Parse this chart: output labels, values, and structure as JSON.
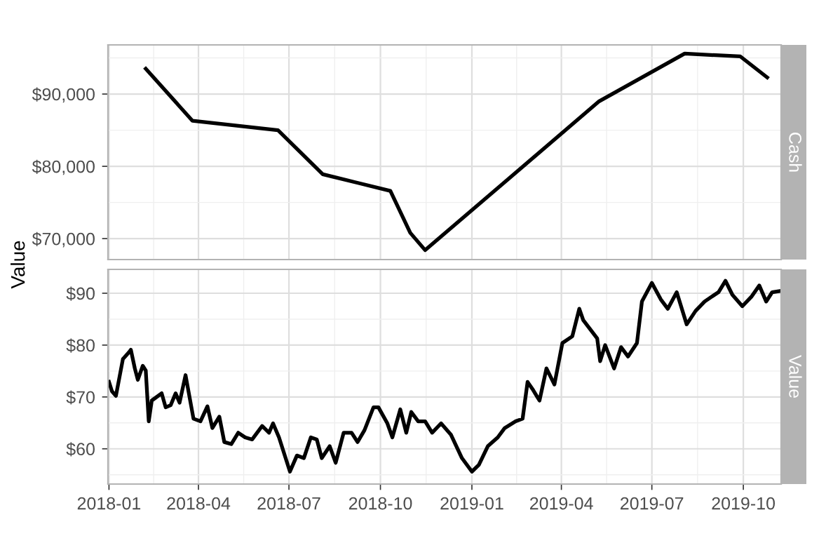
{
  "chart_data": [
    {
      "type": "line",
      "subtitle": "Cash",
      "ylabel": "Value",
      "tick_labels": "y",
      "grid": true,
      "legend": false,
      "marker": "none",
      "line_style": "solid",
      "xlim": [
        "2017-12-31",
        "2019-11-08"
      ],
      "xticks": [
        "2018-01",
        "2018-04",
        "2018-07",
        "2018-10",
        "2019-01",
        "2019-04",
        "2019-07",
        "2019-10"
      ],
      "ylim": [
        67100,
        96800
      ],
      "yticks": [
        {
          "value": 70000,
          "label": "$70,000"
        },
        {
          "value": 80000,
          "label": "$80,000"
        },
        {
          "value": 90000,
          "label": "$90,000"
        }
      ],
      "series": [
        {
          "color": "#000000",
          "x": [
            "2018-02-07",
            "2018-03-26",
            "2018-06-20",
            "2018-08-04",
            "2018-10-11",
            "2018-10-31",
            "2018-11-15",
            "2019-05-09",
            "2019-08-03",
            "2019-09-28",
            "2019-10-25"
          ],
          "values": [
            93500,
            86300,
            85000,
            78900,
            76600,
            70800,
            68400,
            89000,
            95600,
            95200,
            92300
          ]
        }
      ]
    },
    {
      "type": "line",
      "subtitle": "Value",
      "grid": true,
      "legend": false,
      "marker": "none",
      "line_style": "solid",
      "xlim": [
        "2017-12-31",
        "2019-11-08"
      ],
      "xticks": [
        "2018-01",
        "2018-04",
        "2018-07",
        "2018-10",
        "2019-01",
        "2019-04",
        "2019-07",
        "2019-10"
      ],
      "ylim": [
        53.2,
        94.6
      ],
      "yticks": [
        {
          "value": 60,
          "label": "$60"
        },
        {
          "value": 70,
          "label": "$70"
        },
        {
          "value": 80,
          "label": "$80"
        },
        {
          "value": 90,
          "label": "$90"
        }
      ],
      "series": [
        {
          "color": "#000000",
          "x": [
            "2018-01-01",
            "2018-01-04",
            "2018-01-08",
            "2018-01-15",
            "2018-01-21",
            "2018-01-23",
            "2018-01-27",
            "2018-01-30",
            "2018-02-04",
            "2018-02-07",
            "2018-02-10",
            "2018-02-13",
            "2018-02-23",
            "2018-02-27",
            "2018-03-04",
            "2018-03-09",
            "2018-03-13",
            "2018-03-19",
            "2018-03-27",
            "2018-04-03",
            "2018-04-10",
            "2018-04-15",
            "2018-04-22",
            "2018-04-27",
            "2018-05-04",
            "2018-05-11",
            "2018-05-18",
            "2018-05-25",
            "2018-06-04",
            "2018-06-11",
            "2018-06-15",
            "2018-06-21",
            "2018-07-02",
            "2018-07-09",
            "2018-07-16",
            "2018-07-23",
            "2018-07-29",
            "2018-08-03",
            "2018-08-11",
            "2018-08-17",
            "2018-08-25",
            "2018-09-02",
            "2018-09-08",
            "2018-09-15",
            "2018-09-24",
            "2018-09-29",
            "2018-10-08",
            "2018-10-13",
            "2018-10-21",
            "2018-10-27",
            "2018-11-01",
            "2018-11-08",
            "2018-11-15",
            "2018-11-22",
            "2018-12-01",
            "2018-12-11",
            "2018-12-22",
            "2019-01-01",
            "2019-01-08",
            "2019-01-17",
            "2019-01-27",
            "2019-02-03",
            "2019-02-14",
            "2019-02-21",
            "2019-02-26",
            "2019-03-03",
            "2019-03-10",
            "2019-03-17",
            "2019-03-25",
            "2019-04-02",
            "2019-04-12",
            "2019-04-19",
            "2019-04-23",
            "2019-05-07",
            "2019-05-10",
            "2019-05-15",
            "2019-05-24",
            "2019-05-31",
            "2019-06-07",
            "2019-06-16",
            "2019-06-21",
            "2019-07-01",
            "2019-07-10",
            "2019-07-17",
            "2019-07-26",
            "2019-08-05",
            "2019-08-14",
            "2019-08-23",
            "2019-09-02",
            "2019-09-06",
            "2019-09-13",
            "2019-09-20",
            "2019-09-30",
            "2019-10-09",
            "2019-10-17",
            "2019-10-24",
            "2019-10-30",
            "2019-11-06"
          ],
          "values": [
            72.9,
            71.1,
            70.2,
            77.3,
            78.6,
            79.1,
            75.5,
            73.3,
            76.0,
            75.1,
            65.3,
            69.3,
            70.7,
            68.0,
            68.4,
            70.7,
            68.9,
            74.2,
            65.8,
            65.3,
            68.2,
            64.0,
            66.2,
            61.3,
            60.9,
            63.1,
            62.2,
            61.8,
            64.4,
            63.1,
            64.9,
            62.2,
            55.6,
            58.7,
            58.2,
            62.2,
            61.8,
            58.2,
            60.5,
            57.3,
            63.1,
            63.1,
            61.3,
            63.6,
            68.0,
            68.0,
            64.9,
            62.2,
            67.6,
            63.1,
            67.1,
            65.3,
            65.3,
            63.1,
            64.9,
            62.7,
            58.2,
            55.6,
            56.9,
            60.5,
            62.2,
            64.0,
            65.3,
            65.8,
            72.9,
            71.5,
            69.3,
            75.5,
            72.4,
            80.4,
            81.7,
            87.0,
            84.8,
            81.3,
            76.9,
            80.0,
            75.5,
            79.6,
            77.8,
            80.4,
            88.4,
            92.0,
            88.8,
            87.0,
            90.2,
            84.0,
            86.6,
            88.4,
            89.7,
            90.2,
            92.4,
            89.7,
            87.5,
            89.3,
            91.5,
            88.4,
            90.2,
            90.4
          ]
        }
      ]
    }
  ]
}
